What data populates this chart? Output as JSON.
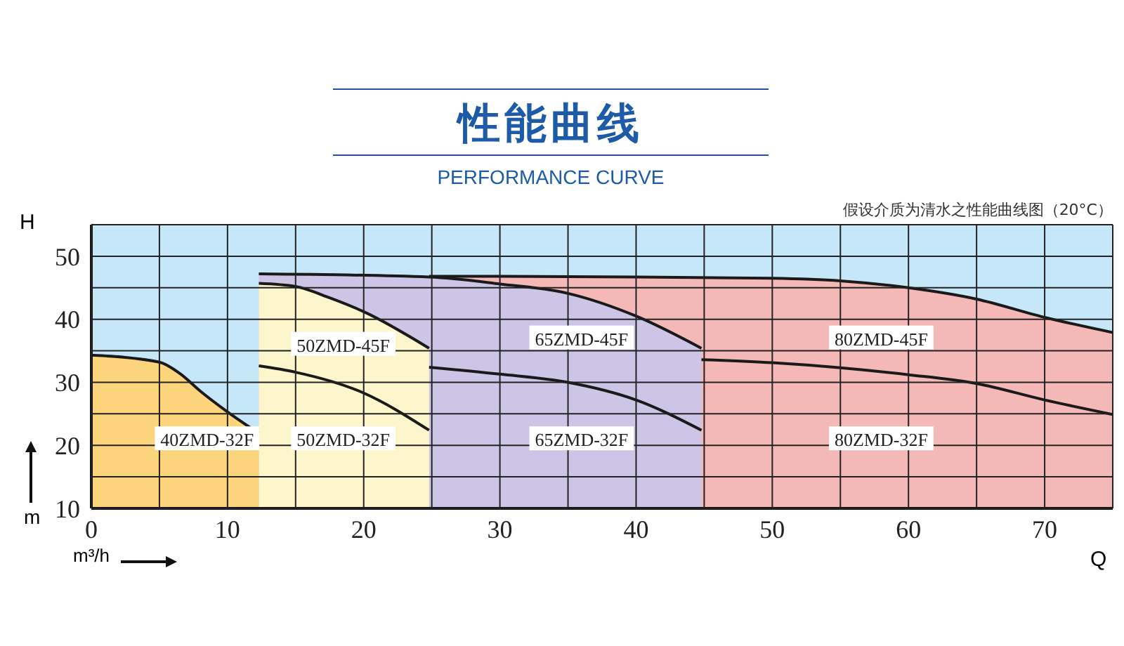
{
  "chart_data": {
    "type": "line",
    "title": "性能曲线",
    "subtitle": "PERFORMANCE CURVE",
    "xlabel": "m³/h",
    "ylabel": "m",
    "annotations": [
      "假设介质为清水之性能曲线图（20°C）",
      "H",
      "Q"
    ],
    "series": [
      {
        "name": "80ZMD-45F",
        "type": "area",
        "color": "#f4b9b6",
        "x": [
          24.8,
          30,
          40,
          50,
          55,
          60,
          65,
          70,
          75
        ],
        "values": [
          46.8,
          46.8,
          46.7,
          46.5,
          46.1,
          45,
          43.2,
          40.3,
          37.9
        ]
      },
      {
        "name": "65ZMD-45F",
        "type": "area",
        "color": "#cdc5e5",
        "x": [
          12.3,
          24.8,
          30,
          35,
          40,
          44.8
        ],
        "values": [
          47.2,
          46.7,
          45.6,
          44.1,
          40.5,
          35.4
        ]
      },
      {
        "name": "50ZMD-45F",
        "type": "area",
        "color": "#fdf6cc",
        "x": [
          12.3,
          15,
          17.5,
          20,
          24.8
        ],
        "values": [
          45.7,
          45.2,
          43.4,
          41.2,
          35.4
        ]
      },
      {
        "name": "40ZMD-32F",
        "type": "area",
        "color": "#fcd47c",
        "x": [
          0,
          5,
          6.5,
          8,
          10,
          12.3
        ],
        "values": [
          34.3,
          33.2,
          31.4,
          28.6,
          25.3,
          21.9
        ]
      },
      {
        "name": "50ZMD-32F",
        "color": "#1a1a1a",
        "x": [
          12.3,
          15,
          20,
          24.8
        ],
        "values": [
          32.6,
          31.6,
          28.3,
          22.4
        ]
      },
      {
        "name": "65ZMD-32F",
        "color": "#1a1a1a",
        "x": [
          24.8,
          30,
          35,
          40,
          44.8
        ],
        "values": [
          32.4,
          31.3,
          30,
          27.2,
          22.4
        ]
      },
      {
        "name": "80ZMD-32F",
        "color": "#1a1a1a",
        "x": [
          44.8,
          50,
          55,
          60,
          65,
          70,
          75
        ],
        "values": [
          33.6,
          33.1,
          32.3,
          31.2,
          29.8,
          27.2,
          24.9
        ]
      }
    ],
    "xlim": [
      0,
      75
    ],
    "xticks": [
      0,
      {
        "value": 5,
        "label": null
      },
      10,
      {
        "value": 15,
        "label": null
      },
      20,
      {
        "value": 25,
        "label": null
      },
      30,
      {
        "value": 35,
        "label": null
      },
      40,
      {
        "value": 45,
        "label": null
      },
      50,
      {
        "value": 55,
        "label": null
      },
      60,
      {
        "value": 65,
        "label": null
      },
      70,
      {
        "value": 75,
        "label": null
      }
    ],
    "ylim": [
      10,
      55
    ],
    "yticks": [
      10,
      {
        "value": 15,
        "label": null
      },
      20,
      {
        "value": 25,
        "label": null
      },
      30,
      {
        "value": 35,
        "label": null
      },
      40,
      {
        "value": 45,
        "label": null
      },
      50,
      {
        "value": 55,
        "label": null
      }
    ],
    "bands": [
      {
        "axis": "y",
        "from": 10,
        "to": 55,
        "color": "#c6e7f8"
      }
    ],
    "grid": true,
    "marker": "none",
    "line_style": "solid"
  }
}
